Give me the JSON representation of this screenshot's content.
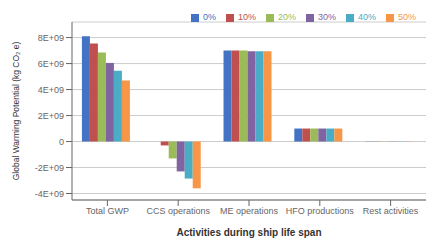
{
  "chart_data": {
    "type": "bar",
    "categories": [
      "Total GWP",
      "CCS operations",
      "ME operations",
      "HFO productions",
      "Rest activities"
    ],
    "series": [
      {
        "name": "0%",
        "color": "#4472c4",
        "values": [
          8100000000,
          0,
          7000000000,
          1000000000,
          15000000
        ]
      },
      {
        "name": "10%",
        "color": "#c0504d",
        "values": [
          7550000000,
          -300000000,
          7000000000,
          1000000000,
          15000000
        ]
      },
      {
        "name": "20%",
        "color": "#9bbb59",
        "values": [
          6850000000,
          -1300000000,
          7000000000,
          1000000000,
          15000000
        ]
      },
      {
        "name": "30%",
        "color": "#8064a2",
        "values": [
          6050000000,
          -2300000000,
          6950000000,
          1000000000,
          15000000
        ]
      },
      {
        "name": "40%",
        "color": "#4bacc6",
        "values": [
          5450000000,
          -2850000000,
          6950000000,
          1000000000,
          15000000
        ]
      },
      {
        "name": "50%",
        "color": "#f79646",
        "values": [
          4700000000,
          -3600000000,
          6950000000,
          1000000000,
          15000000
        ]
      }
    ],
    "xlabel": "Activities during ship life span",
    "ylabel": "Global Warming Potential (kg CO₂ e)",
    "ylim": [
      -4500000000,
      9200000000
    ],
    "yticks": [
      {
        "value": -4000000000,
        "label": "-4E+09"
      },
      {
        "value": -2000000000,
        "label": "-2E+09"
      },
      0,
      {
        "value": 2000000000,
        "label": "2E+09"
      },
      {
        "value": 4000000000,
        "label": "4E+09"
      },
      {
        "value": 6000000000,
        "label": "6E+09"
      },
      {
        "value": 8000000000,
        "label": "8E+09"
      }
    ],
    "grid": true,
    "legend": "upper right"
  }
}
